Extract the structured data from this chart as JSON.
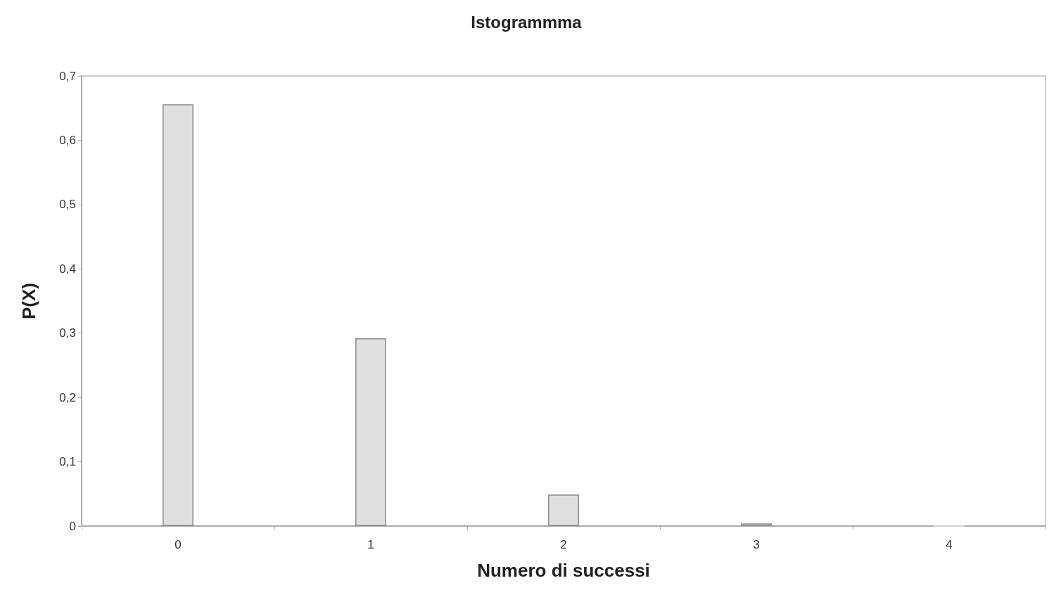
{
  "chart_data": {
    "type": "bar",
    "title": "Istogrammma",
    "xlabel": "Numero di successi",
    "ylabel": "P(X)",
    "categories": [
      "0",
      "1",
      "2",
      "3",
      "4"
    ],
    "values": [
      0.656,
      0.292,
      0.049,
      0.004,
      0
    ],
    "color": "#dfe0df",
    "ylim": [
      0,
      0.7
    ],
    "yticks": [
      0,
      {
        "value": 0.1,
        "label": "0,1"
      },
      {
        "value": 0.2,
        "label": "0,2"
      },
      {
        "value": 0.3,
        "label": "0,3"
      },
      {
        "value": 0.4,
        "label": "0,4"
      },
      {
        "value": 0.5,
        "label": "0,5"
      },
      {
        "value": 0.6,
        "label": "0,6"
      },
      {
        "value": 0.7,
        "label": "0,7"
      }
    ],
    "grid": false
  }
}
